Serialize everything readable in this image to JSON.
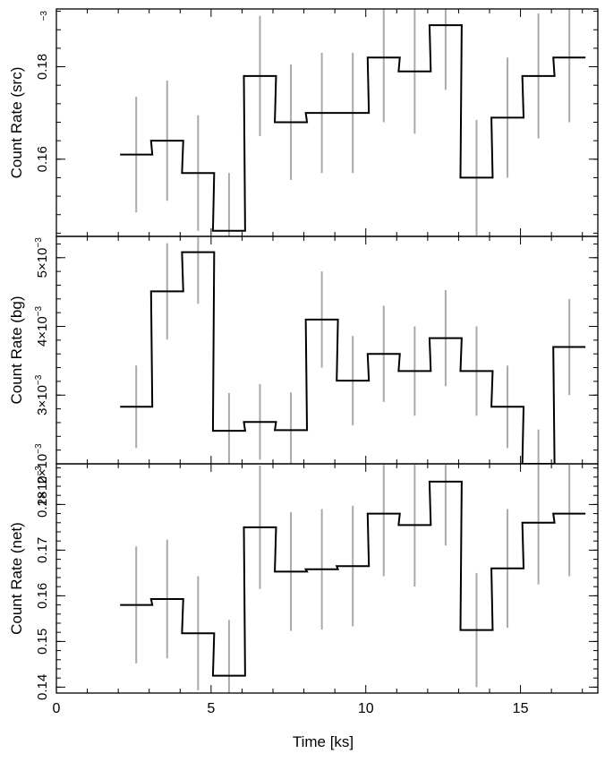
{
  "chart_data": {
    "type": "line",
    "xlabel": "Time [ks]",
    "xlim": [
      0,
      17.5
    ],
    "xticks": [
      {
        "v": 0,
        "label": "0"
      },
      {
        "v": 5,
        "label": "5"
      },
      {
        "v": 10,
        "label": "10"
      },
      {
        "v": 15,
        "label": "15"
      }
    ],
    "colors": {
      "step": "#000000",
      "error": "#aaaaaa",
      "axis": "#000000"
    },
    "time_bins": {
      "centers": [
        2.58,
        3.58,
        4.58,
        5.58,
        6.58,
        7.58,
        8.58,
        9.58,
        10.58,
        11.58,
        12.58,
        13.58,
        14.58,
        15.58,
        16.58
      ],
      "half_width": 0.52
    },
    "panels": [
      {
        "ylabel": "Count Rate (src)",
        "ylim": [
          0.1433,
          0.1925
        ],
        "yticks": [
          {
            "v": 0.16,
            "label": "0.16"
          },
          {
            "v": 0.18,
            "label": "0.18"
          }
        ],
        "y_corner_label": "−3",
        "values": [
          0.161,
          0.164,
          0.157,
          0.1445,
          0.178,
          0.168,
          0.17,
          0.17,
          0.182,
          0.179,
          0.189,
          0.156,
          0.169,
          0.178,
          0.182
        ],
        "errors": [
          0.0125,
          0.013,
          0.0125,
          0.0125,
          0.013,
          0.0125,
          0.013,
          0.013,
          0.014,
          0.0135,
          0.014,
          0.0125,
          0.013,
          0.0135,
          0.014
        ]
      },
      {
        "ylabel": "Count Rate (bg)",
        "ylim": [
          0.002,
          0.00531
        ],
        "yticks": [
          {
            "v": 0.002,
            "label": "2×10−3"
          },
          {
            "v": 0.003,
            "label": "3×10−3"
          },
          {
            "v": 0.004,
            "label": "4×10−3"
          },
          {
            "v": 0.005,
            "label": "5×10−3"
          }
        ],
        "values": [
          0.00283,
          0.00451,
          0.00508,
          0.00248,
          0.00261,
          0.00249,
          0.0041,
          0.00321,
          0.0036,
          0.00335,
          0.00383,
          0.00335,
          0.00283,
          0.002,
          0.0037
        ],
        "errors": [
          0.0006,
          0.0007,
          0.00075,
          0.00055,
          0.00055,
          0.00055,
          0.0007,
          0.00065,
          0.0007,
          0.00065,
          0.0007,
          0.00065,
          0.0006,
          0.0005,
          0.0007
        ]
      },
      {
        "ylabel": "Count Rate (net)",
        "ylim": [
          0.1387,
          0.1889
        ],
        "yticks": [
          {
            "v": 0.14,
            "label": "0.14"
          },
          {
            "v": 0.15,
            "label": "0.15"
          },
          {
            "v": 0.16,
            "label": "0.16"
          },
          {
            "v": 0.17,
            "label": "0.17"
          },
          {
            "v": 0.18,
            "label": "0.18"
          }
        ],
        "y_corner_label": "2×10−3",
        "values": [
          0.158,
          0.1593,
          0.1518,
          0.1425,
          0.175,
          0.1653,
          0.1658,
          0.1665,
          0.178,
          0.1755,
          0.185,
          0.1525,
          0.166,
          0.176,
          0.178
        ],
        "errors": [
          0.0128,
          0.013,
          0.0125,
          0.0122,
          0.0135,
          0.013,
          0.0132,
          0.0132,
          0.0137,
          0.0135,
          0.014,
          0.0125,
          0.013,
          0.0135,
          0.0137
        ]
      }
    ]
  }
}
